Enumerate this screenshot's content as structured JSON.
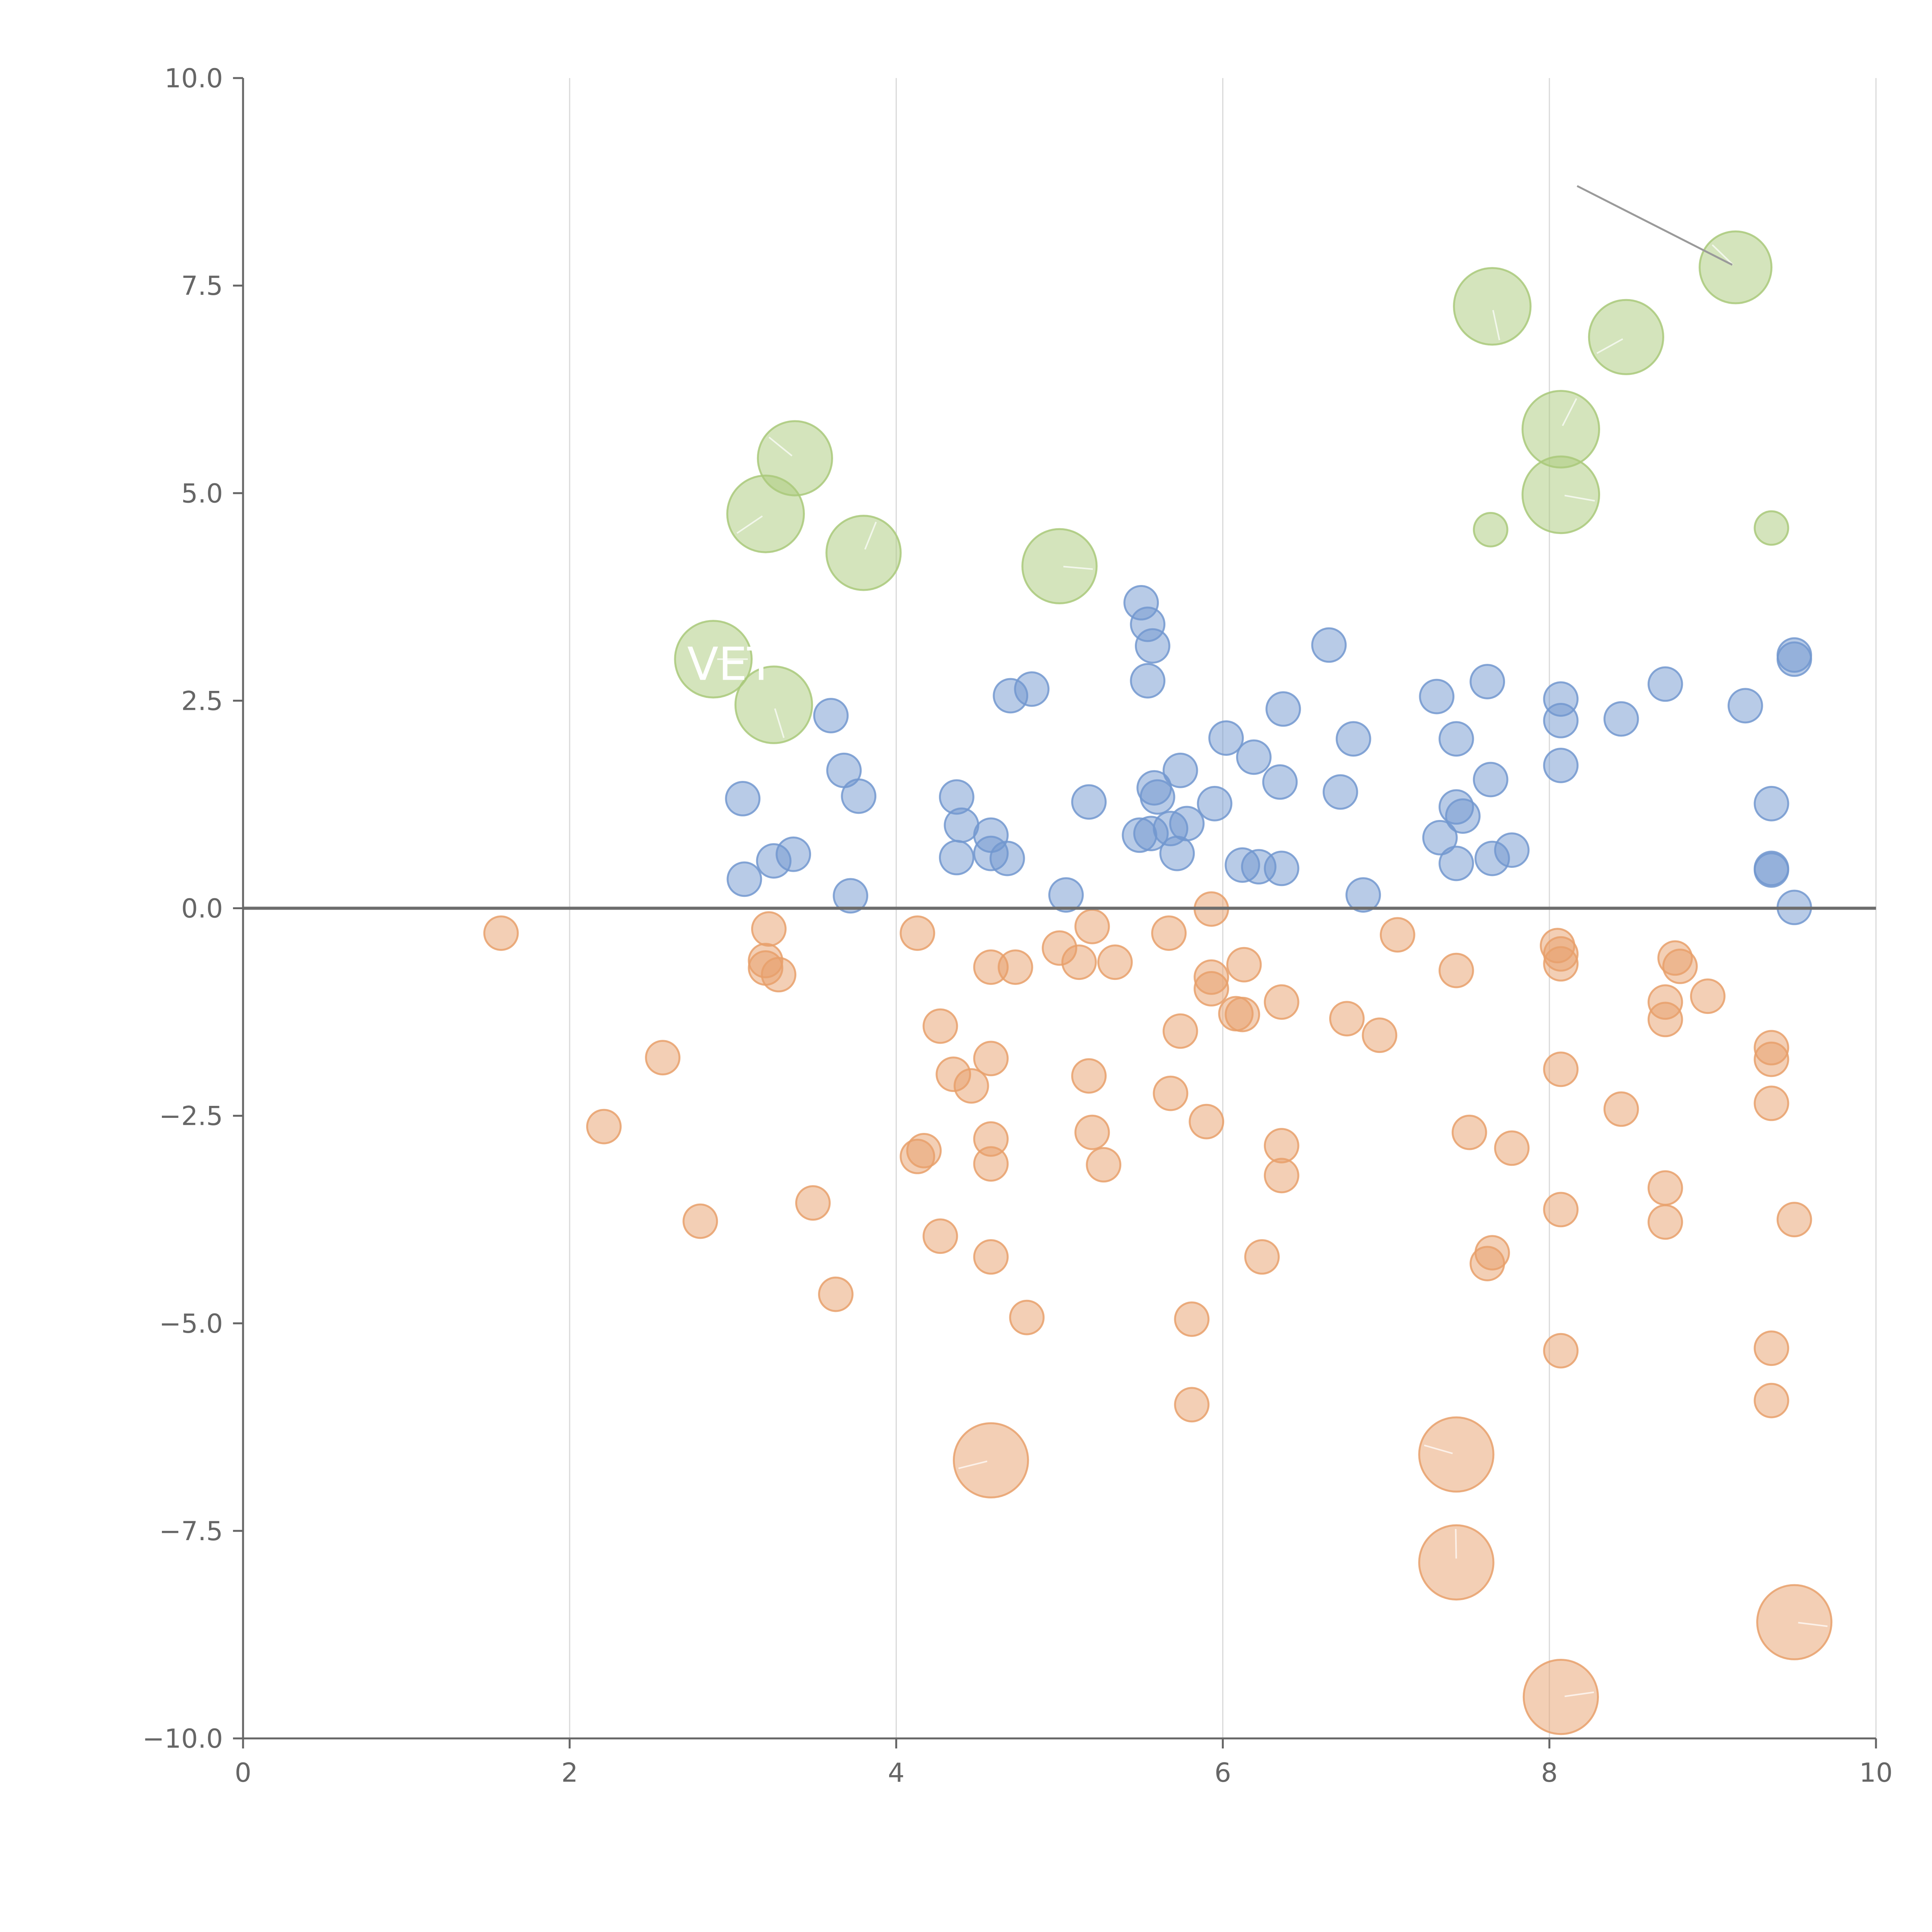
{
  "colors": {
    "upper": "#a9c97a",
    "middle": "#7298cf",
    "lower": "#e7a06b",
    "axis": "#666666",
    "grid": "#d9d9d9",
    "zero": "#6d6d6d",
    "annotation": "#ffffff",
    "leader": "#9a9a9a"
  },
  "chart_data": {
    "type": "scatter",
    "title": "",
    "xlabel": "",
    "ylabel": "",
    "xlim": [
      0,
      10
    ],
    "ylim": [
      -10,
      10
    ],
    "grid": "vertical",
    "legend": "none",
    "xticks": [
      {
        "v": 0,
        "label": "0"
      },
      {
        "v": 2,
        "label": "2"
      },
      {
        "v": 4,
        "label": "4"
      },
      {
        "v": 6,
        "label": "6"
      },
      {
        "v": 8,
        "label": "8"
      },
      {
        "v": 10,
        "label": "10"
      }
    ],
    "yticks": [
      {
        "v": 10,
        "label": "10.0"
      },
      {
        "v": 7.5,
        "label": "7.5"
      },
      {
        "v": 5,
        "label": "5.0"
      },
      {
        "v": 2.5,
        "label": "2.5"
      },
      {
        "v": 0,
        "label": "0.0"
      },
      {
        "v": -2.5,
        "label": "−2.5"
      },
      {
        "v": -5,
        "label": "−5.0"
      },
      {
        "v": -7.5,
        "label": "−7.5"
      },
      {
        "v": -10,
        "label": "−10.0"
      }
    ],
    "annotations": [
      {
        "text": "VET",
        "x": 2.72,
        "y": 2.75
      }
    ],
    "series": [
      {
        "name": "upper",
        "color": "upper",
        "points": [
          [
            2.88,
            3.0,
            1.6
          ],
          [
            3.25,
            2.45,
            1.6
          ],
          [
            3.2,
            4.75,
            1.6
          ],
          [
            3.38,
            5.42,
            1.55
          ],
          [
            3.8,
            4.28,
            1.55
          ],
          [
            5.0,
            4.12,
            1.55
          ],
          [
            7.65,
            7.25,
            1.6
          ],
          [
            8.47,
            6.88,
            1.55
          ],
          [
            9.14,
            7.72,
            1.5
          ],
          [
            8.07,
            5.77,
            1.6
          ],
          [
            8.07,
            4.98,
            1.6
          ],
          [
            7.64,
            4.56,
            0.7
          ],
          [
            9.36,
            4.58,
            0.7
          ]
        ]
      },
      {
        "name": "middle",
        "color": "middle",
        "points": [
          [
            3.06,
            1.32,
            0.7
          ],
          [
            3.07,
            0.35,
            0.7
          ],
          [
            3.25,
            0.57,
            0.7
          ],
          [
            3.37,
            0.65,
            0.7
          ],
          [
            3.6,
            2.32,
            0.7
          ],
          [
            3.68,
            1.66,
            0.7
          ],
          [
            3.72,
            0.15,
            0.7
          ],
          [
            3.77,
            1.35,
            0.7
          ],
          [
            4.37,
            1.34,
            0.7
          ],
          [
            4.37,
            0.61,
            0.7
          ],
          [
            4.4,
            1.0,
            0.7
          ],
          [
            4.58,
            0.88,
            0.7
          ],
          [
            4.58,
            0.66,
            0.7
          ],
          [
            4.68,
            0.6,
            0.7
          ],
          [
            4.7,
            2.56,
            0.7
          ],
          [
            4.83,
            2.64,
            0.7
          ],
          [
            5.04,
            0.16,
            0.7
          ],
          [
            5.18,
            1.28,
            0.7
          ],
          [
            5.5,
            3.68,
            0.7
          ],
          [
            5.54,
            3.42,
            0.7
          ],
          [
            5.57,
            3.16,
            0.7
          ],
          [
            5.54,
            2.74,
            0.7
          ],
          [
            5.49,
            0.88,
            0.7
          ],
          [
            5.56,
            0.9,
            0.7
          ],
          [
            5.58,
            1.45,
            0.7
          ],
          [
            5.6,
            1.34,
            0.7
          ],
          [
            5.68,
            0.96,
            0.7
          ],
          [
            5.74,
            1.66,
            0.7
          ],
          [
            5.78,
            1.02,
            0.7
          ],
          [
            5.72,
            0.66,
            0.7
          ],
          [
            5.95,
            1.26,
            0.7
          ],
          [
            6.02,
            2.05,
            0.7
          ],
          [
            6.12,
            0.52,
            0.7
          ],
          [
            6.19,
            1.82,
            0.7
          ],
          [
            6.22,
            0.5,
            0.7
          ],
          [
            6.35,
            1.52,
            0.7
          ],
          [
            6.37,
            2.4,
            0.7
          ],
          [
            6.36,
            0.48,
            0.7
          ],
          [
            6.65,
            3.17,
            0.7
          ],
          [
            6.72,
            1.4,
            0.7
          ],
          [
            6.8,
            2.04,
            0.7
          ],
          [
            6.86,
            0.16,
            0.7
          ],
          [
            7.31,
            2.55,
            0.7
          ],
          [
            7.33,
            0.85,
            0.7
          ],
          [
            7.43,
            2.04,
            0.7
          ],
          [
            7.43,
            1.22,
            0.7
          ],
          [
            7.47,
            1.11,
            0.7
          ],
          [
            7.43,
            0.54,
            0.7
          ],
          [
            7.62,
            2.73,
            0.7
          ],
          [
            7.64,
            1.55,
            0.7
          ],
          [
            7.65,
            0.6,
            0.7
          ],
          [
            7.77,
            0.7,
            0.7
          ],
          [
            8.07,
            2.52,
            0.7
          ],
          [
            8.07,
            2.26,
            0.7
          ],
          [
            8.07,
            1.72,
            0.7
          ],
          [
            8.44,
            2.28,
            0.7
          ],
          [
            8.71,
            2.7,
            0.7
          ],
          [
            9.2,
            2.44,
            0.7
          ],
          [
            9.36,
            1.26,
            0.7
          ],
          [
            9.36,
            0.48,
            0.7
          ],
          [
            9.36,
            0.46,
            0.7
          ],
          [
            9.5,
            3.05,
            0.7
          ],
          [
            9.5,
            3.0,
            0.7
          ],
          [
            9.5,
            0.01,
            0.7
          ]
        ]
      },
      {
        "name": "lower",
        "color": "lower",
        "points": [
          [
            1.58,
            -0.3,
            0.7
          ],
          [
            2.21,
            -2.63,
            0.7
          ],
          [
            2.57,
            -1.8,
            0.7
          ],
          [
            2.8,
            -3.77,
            0.7
          ],
          [
            3.22,
            -0.25,
            0.7
          ],
          [
            3.2,
            -0.63,
            0.7
          ],
          [
            3.2,
            -0.72,
            0.7
          ],
          [
            3.28,
            -0.8,
            0.7
          ],
          [
            3.49,
            -3.55,
            0.7
          ],
          [
            3.63,
            -4.65,
            0.7
          ],
          [
            4.13,
            -0.3,
            0.7
          ],
          [
            4.13,
            -2.99,
            0.7
          ],
          [
            4.17,
            -2.92,
            0.7
          ],
          [
            4.27,
            -1.42,
            0.7
          ],
          [
            4.27,
            -3.95,
            0.7
          ],
          [
            4.35,
            -2.0,
            0.7
          ],
          [
            4.46,
            -2.14,
            0.7
          ],
          [
            4.58,
            -0.71,
            0.7
          ],
          [
            4.58,
            -1.81,
            0.7
          ],
          [
            4.58,
            -2.78,
            0.7
          ],
          [
            4.58,
            -3.08,
            0.7
          ],
          [
            4.58,
            -4.2,
            0.7
          ],
          [
            4.58,
            -6.65,
            1.55
          ],
          [
            4.73,
            -0.71,
            0.7
          ],
          [
            4.8,
            -4.93,
            0.7
          ],
          [
            5.0,
            -0.48,
            0.7
          ],
          [
            5.12,
            -0.65,
            0.7
          ],
          [
            5.2,
            -0.22,
            0.7
          ],
          [
            5.18,
            -2.02,
            0.7
          ],
          [
            5.2,
            -2.7,
            0.7
          ],
          [
            5.27,
            -3.09,
            0.7
          ],
          [
            5.34,
            -0.65,
            0.7
          ],
          [
            5.67,
            -0.3,
            0.7
          ],
          [
            5.68,
            -2.23,
            0.7
          ],
          [
            5.74,
            -1.48,
            0.7
          ],
          [
            5.81,
            -4.95,
            0.7
          ],
          [
            5.81,
            -5.98,
            0.7
          ],
          [
            5.9,
            -2.57,
            0.7
          ],
          [
            5.93,
            -0.01,
            0.7
          ],
          [
            5.93,
            -0.83,
            0.7
          ],
          [
            5.93,
            -0.97,
            0.7
          ],
          [
            6.08,
            -1.27,
            0.7
          ],
          [
            6.12,
            -1.28,
            0.7
          ],
          [
            6.13,
            -0.68,
            0.7
          ],
          [
            6.24,
            -4.2,
            0.7
          ],
          [
            6.36,
            -1.13,
            0.7
          ],
          [
            6.36,
            -2.86,
            0.7
          ],
          [
            6.36,
            -3.22,
            0.7
          ],
          [
            6.76,
            -1.33,
            0.7
          ],
          [
            6.96,
            -1.53,
            0.7
          ],
          [
            7.07,
            -0.32,
            0.7
          ],
          [
            7.43,
            -0.75,
            0.7
          ],
          [
            7.43,
            -6.58,
            1.55
          ],
          [
            7.43,
            -7.88,
            1.55
          ],
          [
            7.51,
            -2.7,
            0.7
          ],
          [
            7.62,
            -4.28,
            0.7
          ],
          [
            7.65,
            -4.15,
            0.7
          ],
          [
            7.77,
            -2.89,
            0.7
          ],
          [
            8.05,
            -0.45,
            0.7
          ],
          [
            8.07,
            -0.55,
            0.7
          ],
          [
            8.07,
            -0.67,
            0.7
          ],
          [
            8.07,
            -1.94,
            0.7
          ],
          [
            8.07,
            -3.63,
            0.7
          ],
          [
            8.07,
            -5.33,
            0.7
          ],
          [
            8.07,
            -9.5,
            1.55
          ],
          [
            8.44,
            -2.42,
            0.7
          ],
          [
            8.71,
            -1.13,
            0.7
          ],
          [
            8.71,
            -1.34,
            0.7
          ],
          [
            8.71,
            -3.37,
            0.7
          ],
          [
            8.71,
            -3.78,
            0.7
          ],
          [
            8.77,
            -0.6,
            0.7
          ],
          [
            8.8,
            -0.7,
            0.7
          ],
          [
            8.97,
            -1.06,
            0.7
          ],
          [
            9.36,
            -1.68,
            0.7
          ],
          [
            9.36,
            -1.82,
            0.7
          ],
          [
            9.36,
            -2.35,
            0.7
          ],
          [
            9.36,
            -5.3,
            0.7
          ],
          [
            9.36,
            -5.93,
            0.7
          ],
          [
            9.5,
            -3.75,
            0.7
          ],
          [
            9.5,
            -8.6,
            1.55
          ]
        ]
      }
    ]
  }
}
